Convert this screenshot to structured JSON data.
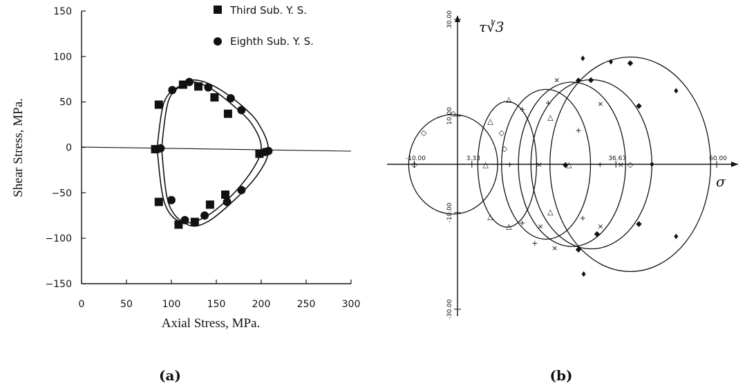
{
  "chart_data": [
    {
      "type": "scatter",
      "panel_label": "(a)",
      "xlabel": "Axial Stress, MPa.",
      "ylabel": "Shear Stress, MPa.",
      "xlim": [
        0,
        300
      ],
      "ylim": [
        -150,
        150
      ],
      "x_ticks": [
        "0",
        "50",
        "100",
        "150",
        "200",
        "250",
        "300"
      ],
      "y_ticks": [
        "150",
        "100",
        "50",
        "0",
        "−50",
        "−100",
        "−150"
      ],
      "legend_position": "top-right",
      "series": [
        {
          "name": "Third Sub. Y. S.",
          "marker": "square",
          "points": [
            [
              86,
              47
            ],
            [
              82,
              -2
            ],
            [
              86,
              -60
            ],
            [
              108,
              -85
            ],
            [
              113,
              69
            ],
            [
              130,
              67
            ],
            [
              126,
              -82
            ],
            [
              143,
              -63
            ],
            [
              148,
              55
            ],
            [
              163,
              37
            ],
            [
              160,
              -52
            ],
            [
              198,
              -7
            ]
          ]
        },
        {
          "name": "Eighth Sub. Y. S.",
          "marker": "circle",
          "points": [
            [
              101,
              63
            ],
            [
              120,
              72
            ],
            [
              141,
              66
            ],
            [
              166,
              54
            ],
            [
              178,
              41
            ],
            [
              88,
              -1
            ],
            [
              100,
              -58
            ],
            [
              115,
              -80
            ],
            [
              137,
              -75
            ],
            [
              162,
              -60
            ],
            [
              178,
              -47
            ],
            [
              204,
              -5
            ],
            [
              208,
              -4
            ]
          ]
        }
      ],
      "curves": [
        {
          "name": "",
          "points": [
            [
              84,
              -1
            ],
            [
              92,
              50
            ],
            [
              110,
              68
            ],
            [
              125,
              72
            ],
            [
              145,
              64
            ],
            [
              170,
              45
            ],
            [
              190,
              25
            ],
            [
              200,
              0
            ],
            [
              190,
              -25
            ],
            [
              165,
              -55
            ],
            [
              135,
              -78
            ],
            [
              110,
              -82
            ],
            [
              92,
              -60
            ],
            [
              84,
              -1
            ]
          ]
        },
        {
          "name": "",
          "points": [
            [
              89,
              -1
            ],
            [
              97,
              52
            ],
            [
              115,
              70
            ],
            [
              128,
              74
            ],
            [
              150,
              66
            ],
            [
              177,
              47
            ],
            [
              197,
              26
            ],
            [
              208,
              -3
            ],
            [
              196,
              -30
            ],
            [
              170,
              -58
            ],
            [
              140,
              -82
            ],
            [
              118,
              -85
            ],
            [
              97,
              -62
            ],
            [
              89,
              -1
            ]
          ]
        }
      ]
    },
    {
      "type": "line",
      "panel_label": "(b)",
      "xlabel": "σ",
      "ylabel": "τ√3",
      "x_ticks": [
        "-10.00",
        "3.33",
        "36.67",
        "60.00"
      ],
      "y_ticks": [
        "30.00",
        "10.00",
        "-10.00",
        "-30.00"
      ],
      "circles": [
        {
          "cx": -1.0,
          "r": 10.3,
          "ry": 10.3
        },
        {
          "cx": 11.5,
          "r": 6.8,
          "ry": 13.0
        },
        {
          "cx": 20.5,
          "r": 10.3,
          "ry": 15.5
        },
        {
          "cx": 26.5,
          "r": 12.4,
          "ry": 17.0
        },
        {
          "cx": 31.0,
          "r": 14.0,
          "ry": 17.5
        },
        {
          "cx": 40.0,
          "r": 18.6,
          "ry": 22.2
        }
      ],
      "markers": [
        {
          "symbol": "◇",
          "points": [
            [
              -10,
              0
            ],
            [
              -7.8,
              6.6
            ],
            [
              -1,
              10.6
            ],
            [
              10.2,
              6.6
            ],
            [
              10.9,
              3.3
            ],
            [
              40,
              0
            ]
          ]
        },
        {
          "symbol": "△",
          "points": [
            [
              6.5,
              0
            ],
            [
              7.6,
              8.9
            ],
            [
              7.6,
              -10.8
            ],
            [
              11.9,
              13.5
            ],
            [
              11.9,
              -12.8
            ],
            [
              21.5,
              9.8
            ],
            [
              21.5,
              -9.8
            ],
            [
              25.8,
              0
            ]
          ]
        },
        {
          "symbol": "+",
          "points": [
            [
              12.1,
              0
            ],
            [
              15,
              11.4
            ],
            [
              15,
              -12.1
            ],
            [
              21,
              12.8
            ],
            [
              17.9,
              -16.3
            ],
            [
              28,
              7.1
            ],
            [
              29,
              -11.1
            ],
            [
              33,
              0
            ]
          ]
        },
        {
          "symbol": "×",
          "points": [
            [
              18.9,
              0
            ],
            [
              23,
              17.5
            ],
            [
              22.5,
              -17.3
            ],
            [
              19.2,
              -12.8
            ],
            [
              33.1,
              12.6
            ],
            [
              33.1,
              -12.8
            ],
            [
              37.8,
              0
            ]
          ]
        },
        {
          "symbol": "◆",
          "points": [
            [
              25,
              0
            ],
            [
              28,
              17.5
            ],
            [
              28,
              -17.5
            ],
            [
              30.9,
              17.6
            ],
            [
              32.3,
              -14.3
            ],
            [
              40,
              21.1
            ],
            [
              42,
              12.2
            ],
            [
              42,
              -12.2
            ]
          ]
        },
        {
          "symbol": "♦",
          "points": [
            [
              29,
              21.9
            ],
            [
              35.5,
              21.2
            ],
            [
              50.6,
              15.2
            ],
            [
              50.6,
              -14.9
            ],
            [
              29.2,
              -22.7
            ],
            [
              45,
              0
            ]
          ]
        }
      ]
    }
  ],
  "labels": {
    "panel_a": "(a)",
    "panel_b": "(b)"
  }
}
